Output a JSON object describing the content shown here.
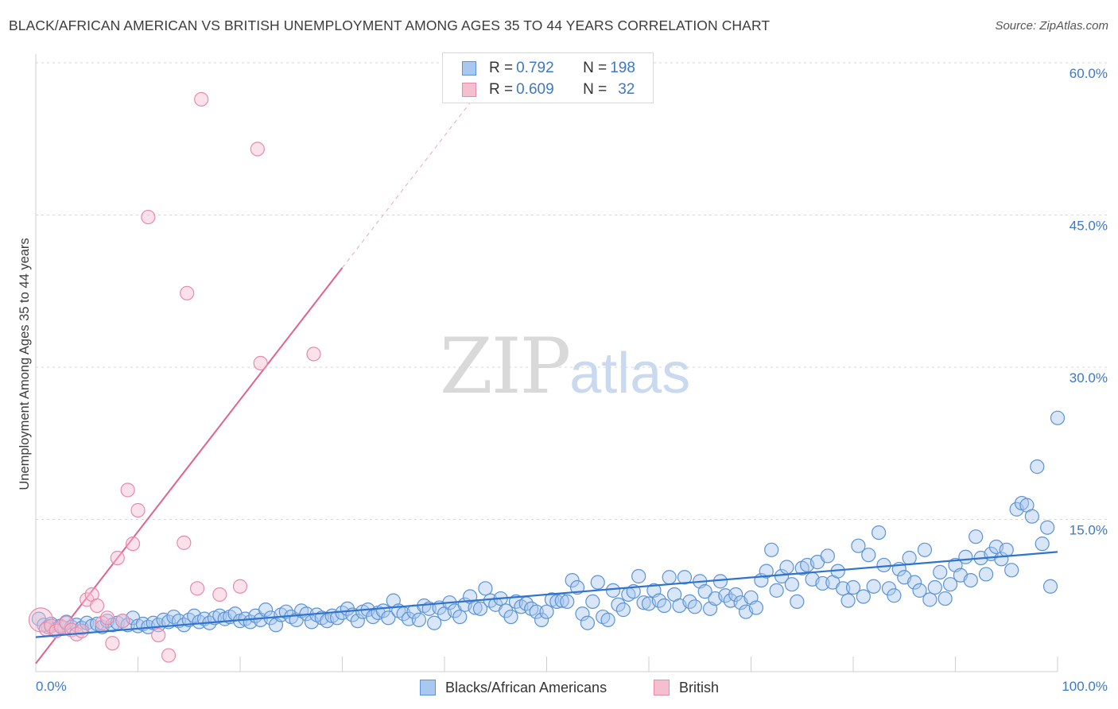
{
  "title": "BLACK/AFRICAN AMERICAN VS BRITISH UNEMPLOYMENT AMONG AGES 35 TO 44 YEARS CORRELATION CHART",
  "source": "Source: ZipAtlas.com",
  "watermark": {
    "zip": "ZIP",
    "atlas": "atlas"
  },
  "colors": {
    "blue_fill": "#a9c8f0",
    "blue_stroke": "#5b93d6",
    "blue_line": "#2f73cf",
    "pink_fill": "#f6bfd0",
    "pink_stroke": "#e88aa8",
    "pink_line": "#e0628f",
    "grid": "#d6d6d6",
    "tick_text": "#3d78c8"
  },
  "legend_stats": [
    {
      "r_label": "R = ",
      "r_value": "0.792",
      "n_label": "N = ",
      "n_value": "198"
    },
    {
      "r_label": "R = ",
      "r_value": "0.609",
      "n_label": "N = ",
      "n_value": "32"
    }
  ],
  "chart_data": {
    "type": "scatter",
    "title": "BLACK/AFRICAN AMERICAN VS BRITISH UNEMPLOYMENT AMONG AGES 35 TO 44 YEARS CORRELATION CHART",
    "xlabel": "",
    "ylabel": "Unemployment Among Ages 35 to 44 years",
    "xlim": [
      0,
      100
    ],
    "ylim": [
      0,
      60
    ],
    "x_tick_labels": [
      "0.0%",
      "100.0%"
    ],
    "y_ticks": [
      15,
      30,
      45,
      60
    ],
    "y_tick_labels": [
      "15.0%",
      "30.0%",
      "45.0%",
      "60.0%"
    ],
    "grid": true,
    "legend_position": "bottom",
    "series": [
      {
        "name": "Blacks/African Americans",
        "color": "#a9c8f0",
        "r": 0.792,
        "n": 198,
        "trend": {
          "x": [
            0,
            100
          ],
          "y": [
            3.4,
            11.8
          ]
        },
        "points": [
          [
            0.3,
            5.2
          ],
          [
            0.8,
            4.6
          ],
          [
            1.2,
            4.4
          ],
          [
            1.5,
            4.7
          ],
          [
            2.0,
            4.2
          ],
          [
            2.4,
            4.5
          ],
          [
            2.8,
            4.3
          ],
          [
            3.0,
            4.9
          ],
          [
            3.5,
            4.4
          ],
          [
            4.0,
            4.6
          ],
          [
            4.5,
            4.3
          ],
          [
            5.0,
            4.8
          ],
          [
            5.5,
            4.5
          ],
          [
            6.0,
            4.7
          ],
          [
            6.5,
            4.4
          ],
          [
            7.0,
            5.0
          ],
          [
            7.5,
            4.6
          ],
          [
            8.0,
            4.8
          ],
          [
            8.5,
            5.0
          ],
          [
            9.0,
            4.6
          ],
          [
            9.5,
            5.3
          ],
          [
            10.0,
            4.5
          ],
          [
            10.5,
            4.7
          ],
          [
            11.0,
            4.4
          ],
          [
            11.5,
            4.8
          ],
          [
            12.0,
            4.6
          ],
          [
            12.5,
            5.1
          ],
          [
            13.0,
            4.9
          ],
          [
            13.5,
            5.4
          ],
          [
            14.0,
            5.0
          ],
          [
            14.5,
            4.6
          ],
          [
            15.0,
            5.1
          ],
          [
            15.5,
            5.5
          ],
          [
            16.0,
            4.9
          ],
          [
            16.5,
            5.2
          ],
          [
            17.0,
            4.8
          ],
          [
            17.5,
            5.3
          ],
          [
            18.0,
            5.5
          ],
          [
            18.5,
            5.2
          ],
          [
            19.0,
            5.4
          ],
          [
            19.5,
            5.7
          ],
          [
            20.0,
            5.0
          ],
          [
            20.5,
            5.2
          ],
          [
            21.0,
            4.9
          ],
          [
            21.5,
            5.5
          ],
          [
            22.0,
            5.1
          ],
          [
            22.5,
            6.1
          ],
          [
            23.0,
            5.3
          ],
          [
            23.5,
            4.6
          ],
          [
            24.0,
            5.6
          ],
          [
            24.5,
            5.9
          ],
          [
            25.0,
            5.4
          ],
          [
            25.5,
            5.1
          ],
          [
            26.0,
            6.0
          ],
          [
            26.5,
            5.7
          ],
          [
            27.0,
            4.9
          ],
          [
            27.5,
            5.6
          ],
          [
            28.0,
            5.3
          ],
          [
            28.5,
            5.0
          ],
          [
            29.0,
            5.5
          ],
          [
            29.5,
            5.3
          ],
          [
            30.0,
            5.8
          ],
          [
            30.5,
            6.2
          ],
          [
            31.0,
            5.6
          ],
          [
            31.5,
            5.0
          ],
          [
            32.0,
            5.9
          ],
          [
            32.5,
            6.1
          ],
          [
            33.0,
            5.4
          ],
          [
            33.5,
            5.8
          ],
          [
            34.0,
            6.0
          ],
          [
            34.5,
            5.3
          ],
          [
            35.0,
            7.0
          ],
          [
            35.5,
            6.0
          ],
          [
            36.0,
            5.7
          ],
          [
            36.5,
            5.2
          ],
          [
            37.0,
            5.9
          ],
          [
            37.5,
            5.1
          ],
          [
            38.0,
            6.5
          ],
          [
            38.5,
            6.2
          ],
          [
            39.0,
            4.8
          ],
          [
            39.5,
            6.3
          ],
          [
            40.0,
            5.7
          ],
          [
            40.5,
            6.8
          ],
          [
            41.0,
            6.0
          ],
          [
            41.5,
            5.4
          ],
          [
            42.0,
            6.6
          ],
          [
            42.5,
            7.4
          ],
          [
            43.0,
            6.3
          ],
          [
            43.5,
            6.2
          ],
          [
            44.0,
            8.2
          ],
          [
            44.5,
            7.0
          ],
          [
            45.0,
            6.6
          ],
          [
            45.5,
            7.2
          ],
          [
            46.0,
            6.0
          ],
          [
            46.5,
            5.4
          ],
          [
            47.0,
            6.9
          ],
          [
            47.5,
            6.4
          ],
          [
            48.0,
            6.7
          ],
          [
            48.5,
            6.2
          ],
          [
            49.0,
            5.9
          ],
          [
            49.5,
            5.1
          ],
          [
            50.0,
            5.9
          ],
          [
            50.5,
            7.1
          ],
          [
            51.0,
            6.9
          ],
          [
            51.5,
            7.0
          ],
          [
            52.0,
            6.9
          ],
          [
            52.5,
            9.0
          ],
          [
            53.0,
            8.3
          ],
          [
            53.5,
            5.7
          ],
          [
            54.0,
            4.8
          ],
          [
            54.5,
            6.9
          ],
          [
            55.0,
            8.8
          ],
          [
            55.5,
            5.4
          ],
          [
            56.0,
            5.1
          ],
          [
            56.5,
            8.0
          ],
          [
            57.0,
            6.6
          ],
          [
            57.5,
            6.1
          ],
          [
            58.0,
            7.6
          ],
          [
            58.5,
            7.9
          ],
          [
            59.0,
            9.4
          ],
          [
            59.5,
            6.8
          ],
          [
            60.0,
            6.7
          ],
          [
            60.5,
            8.0
          ],
          [
            61.0,
            7.0
          ],
          [
            61.5,
            6.5
          ],
          [
            62.0,
            9.3
          ],
          [
            62.5,
            7.6
          ],
          [
            63.0,
            6.5
          ],
          [
            63.5,
            9.3
          ],
          [
            64.0,
            6.9
          ],
          [
            64.5,
            6.4
          ],
          [
            65.0,
            8.9
          ],
          [
            65.5,
            7.9
          ],
          [
            66.0,
            6.2
          ],
          [
            66.5,
            7.2
          ],
          [
            67.0,
            8.9
          ],
          [
            67.5,
            7.5
          ],
          [
            68.0,
            7.0
          ],
          [
            68.5,
            7.6
          ],
          [
            69.0,
            6.8
          ],
          [
            69.5,
            5.9
          ],
          [
            70.0,
            7.3
          ],
          [
            70.5,
            6.3
          ],
          [
            71.0,
            9.0
          ],
          [
            71.5,
            9.9
          ],
          [
            72.0,
            12.0
          ],
          [
            72.5,
            8.0
          ],
          [
            73.0,
            9.4
          ],
          [
            73.5,
            10.3
          ],
          [
            74.0,
            8.6
          ],
          [
            74.5,
            6.9
          ],
          [
            75.0,
            10.2
          ],
          [
            75.5,
            10.5
          ],
          [
            76.0,
            9.1
          ],
          [
            76.5,
            10.8
          ],
          [
            77.0,
            8.7
          ],
          [
            77.5,
            11.4
          ],
          [
            78.0,
            8.8
          ],
          [
            78.5,
            9.9
          ],
          [
            79.0,
            8.2
          ],
          [
            79.5,
            7.0
          ],
          [
            80.0,
            8.3
          ],
          [
            80.5,
            12.4
          ],
          [
            81.0,
            7.4
          ],
          [
            81.5,
            11.5
          ],
          [
            82.0,
            8.4
          ],
          [
            82.5,
            13.7
          ],
          [
            83.0,
            10.5
          ],
          [
            83.5,
            8.2
          ],
          [
            84.0,
            7.5
          ],
          [
            84.5,
            10.1
          ],
          [
            85.0,
            9.3
          ],
          [
            85.5,
            11.2
          ],
          [
            86.0,
            8.8
          ],
          [
            86.5,
            8.0
          ],
          [
            87.0,
            12.0
          ],
          [
            87.5,
            7.1
          ],
          [
            88.0,
            8.3
          ],
          [
            88.5,
            9.8
          ],
          [
            89.0,
            7.2
          ],
          [
            89.5,
            8.6
          ],
          [
            90.0,
            10.5
          ],
          [
            90.5,
            9.5
          ],
          [
            91.0,
            11.3
          ],
          [
            91.5,
            9.0
          ],
          [
            92.0,
            13.3
          ],
          [
            92.5,
            11.2
          ],
          [
            93.0,
            9.6
          ],
          [
            93.5,
            11.6
          ],
          [
            94.0,
            12.3
          ],
          [
            94.5,
            11.1
          ],
          [
            95.0,
            12.0
          ],
          [
            95.5,
            10.0
          ],
          [
            96.0,
            16.0
          ],
          [
            96.5,
            16.6
          ],
          [
            97.0,
            16.4
          ],
          [
            97.5,
            15.3
          ],
          [
            98.0,
            20.2
          ],
          [
            98.5,
            12.6
          ],
          [
            99.0,
            14.2
          ],
          [
            99.3,
            8.4
          ],
          [
            100.0,
            25.0
          ]
        ]
      },
      {
        "name": "British",
        "color": "#f6bfd0",
        "r": 0.609,
        "n": 32,
        "trend": {
          "x": [
            0,
            30
          ],
          "y": [
            0.8,
            39.8
          ]
        },
        "trend_dashed_extension": {
          "x": [
            30,
            43
          ],
          "y": [
            39.8,
            56.7
          ]
        },
        "points": [
          [
            0.5,
            5.1
          ],
          [
            1.0,
            4.2
          ],
          [
            1.5,
            4.5
          ],
          [
            2.0,
            4.0
          ],
          [
            2.5,
            4.4
          ],
          [
            3.0,
            4.8
          ],
          [
            3.5,
            4.1
          ],
          [
            4.0,
            3.7
          ],
          [
            4.5,
            4.0
          ],
          [
            5.0,
            7.1
          ],
          [
            5.5,
            7.6
          ],
          [
            6.0,
            6.5
          ],
          [
            6.5,
            4.8
          ],
          [
            7.0,
            5.3
          ],
          [
            7.5,
            2.8
          ],
          [
            8.0,
            11.2
          ],
          [
            8.5,
            5.0
          ],
          [
            9.0,
            17.9
          ],
          [
            9.5,
            12.6
          ],
          [
            10.0,
            15.9
          ],
          [
            12.0,
            3.6
          ],
          [
            13.0,
            1.6
          ],
          [
            14.5,
            12.7
          ],
          [
            14.8,
            37.3
          ],
          [
            15.8,
            8.2
          ],
          [
            16.2,
            56.4
          ],
          [
            18.0,
            7.6
          ],
          [
            20.0,
            8.4
          ],
          [
            21.7,
            51.5
          ],
          [
            22.0,
            30.4
          ],
          [
            27.2,
            31.3
          ],
          [
            11.0,
            44.8
          ]
        ]
      }
    ]
  },
  "bottom_legend": [
    {
      "label": "Blacks/African Americans"
    },
    {
      "label": "British"
    }
  ]
}
